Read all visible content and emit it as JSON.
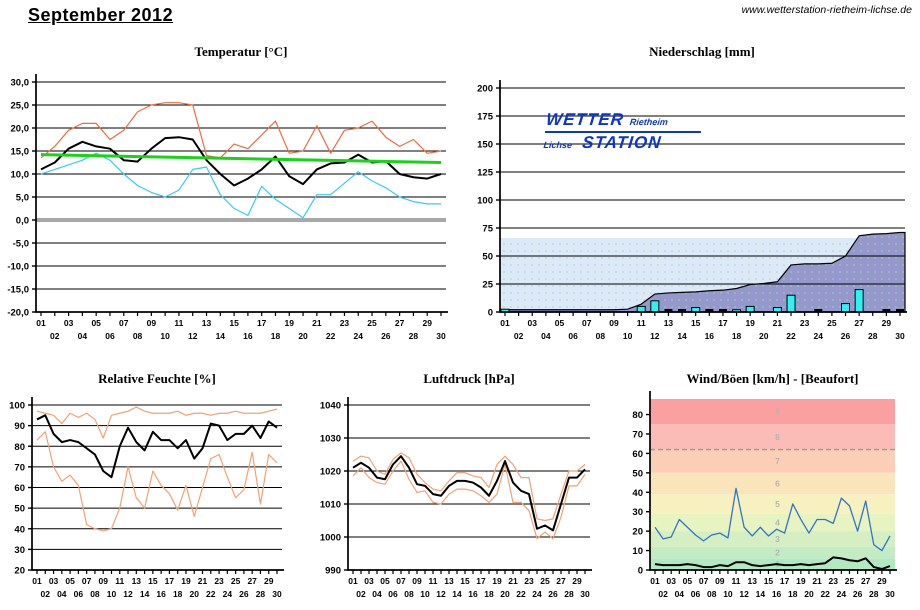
{
  "page": {
    "title": "September 2012",
    "website": "www.wetterstation-rietheim-lichse.de"
  },
  "logo": {
    "wetter": "WETTER",
    "rietheim": "Rietheim",
    "lichse": "Lichse",
    "station": "STATION",
    "color": "#0b35cc"
  },
  "days": [
    "01",
    "02",
    "03",
    "04",
    "05",
    "06",
    "07",
    "08",
    "09",
    "10",
    "11",
    "12",
    "13",
    "14",
    "15",
    "16",
    "17",
    "18",
    "19",
    "20",
    "21",
    "22",
    "23",
    "24",
    "25",
    "26",
    "27",
    "28",
    "29",
    "30"
  ],
  "chart_data": [
    {
      "type": "line",
      "title": "Temperatur [°C]",
      "xlabel": "",
      "ylabel": "",
      "x": "days 01-30",
      "ylim": [
        -20,
        30
      ],
      "y_ticks": {
        "values": [
          30,
          25,
          20,
          15,
          10,
          5,
          0,
          -5,
          -10,
          -15,
          -20
        ],
        "labels": [
          "30,0",
          "25,0",
          "20,0",
          "15,0",
          "10,0",
          "5,0",
          "0,0",
          "-5,0",
          "-10,0",
          "-15,0",
          "-20,0"
        ]
      },
      "zero_line": {
        "value": 0,
        "color": "#a8a8a8"
      },
      "series": [
        {
          "key": "max",
          "color": "#f4693c",
          "width": 1.2,
          "values": [
            13.5,
            16,
            19.5,
            21,
            21,
            17.5,
            19.5,
            23.5,
            25,
            25.5,
            25.5,
            25,
            14,
            13.5,
            16.5,
            15.5,
            18.5,
            21.5,
            14.5,
            15,
            20.5,
            14.5,
            19.5,
            20,
            21.5,
            18,
            16,
            17.5,
            14.5,
            15
          ]
        },
        {
          "key": "min",
          "color": "#33ccf5",
          "width": 1.2,
          "values": [
            10,
            11,
            12,
            13,
            14.5,
            13,
            10,
            7.5,
            6,
            5,
            6.5,
            11,
            11.5,
            5.5,
            2.5,
            1,
            7.3,
            4.5,
            2.5,
            0.5,
            5.5,
            5.5,
            8,
            10.5,
            8.5,
            7,
            5,
            4,
            3.5,
            3.5
          ]
        },
        {
          "key": "mean",
          "color": "#000000",
          "width": 2,
          "values": [
            11,
            12.5,
            15.5,
            17,
            16,
            15.5,
            13,
            12.7,
            15.5,
            17.8,
            18,
            17.5,
            13,
            10,
            7.5,
            9,
            11,
            13.8,
            9.5,
            7.8,
            11,
            12.3,
            12.5,
            14.2,
            12.5,
            12.8,
            10,
            9.3,
            9,
            10
          ]
        }
      ],
      "trend": {
        "start": 14.2,
        "end": 12.5,
        "color": "#15d615"
      }
    },
    {
      "type": "bar+area",
      "title": "Niederschlag [mm]",
      "xlabel": "",
      "ylabel": "",
      "x": "days 01-30",
      "ylim": [
        0,
        200
      ],
      "y_ticks": {
        "values": [
          200,
          175,
          150,
          125,
          100,
          75,
          50,
          25,
          0
        ],
        "labels": [
          "200",
          "175",
          "150",
          "125",
          "100",
          "75",
          "50",
          "25",
          "0"
        ]
      },
      "normal_area": {
        "value": 66,
        "color": "#dce9f8"
      },
      "cumulative": {
        "color": "#9697cd",
        "values": [
          2,
          2,
          2,
          2,
          2,
          2,
          2,
          2,
          2,
          2.5,
          7,
          16,
          17,
          17.5,
          18,
          19,
          19.5,
          21,
          24.5,
          25.5,
          27,
          42,
          43,
          43,
          43.5,
          50,
          68,
          69.5,
          70,
          71
        ]
      },
      "daily": {
        "color": "#2ef2f2",
        "values": [
          2.5,
          0,
          0,
          0,
          0,
          0,
          0,
          0,
          0,
          0,
          5,
          10,
          0,
          0,
          4,
          0,
          0,
          2,
          5,
          0,
          4,
          15,
          0,
          0,
          0,
          7.5,
          20,
          0,
          0,
          0
        ]
      },
      "trace_days": [
        13,
        14,
        16,
        17,
        24,
        29,
        30
      ]
    },
    {
      "type": "line",
      "title": "Relative Feuchte [%]",
      "xlabel": "",
      "ylabel": "",
      "x": "days 01-30",
      "ylim": [
        20,
        100
      ],
      "y_ticks": {
        "values": [
          100,
          90,
          80,
          70,
          60,
          50,
          40,
          30,
          20
        ],
        "labels": [
          "100",
          "90",
          "80",
          "70",
          "60",
          "50",
          "40",
          "30",
          "20"
        ]
      },
      "series": [
        {
          "key": "max",
          "color": "#f4a173",
          "width": 1.2,
          "values": [
            97,
            96,
            95,
            91,
            96,
            94,
            96,
            93,
            84,
            95,
            96,
            97,
            99,
            97,
            96,
            96,
            96,
            97,
            95,
            96,
            96,
            95,
            96,
            96,
            97,
            96,
            96,
            96,
            97,
            98
          ]
        },
        {
          "key": "min",
          "color": "#f4a173",
          "width": 1.2,
          "values": [
            83,
            87,
            70,
            63,
            66,
            61,
            42,
            40,
            39,
            40,
            50,
            70,
            55,
            50,
            68,
            61,
            57,
            49,
            61,
            46,
            60,
            74,
            76,
            65,
            55,
            59,
            77,
            52,
            76,
            72
          ]
        },
        {
          "key": "mean",
          "color": "#000000",
          "width": 2,
          "values": [
            93,
            95,
            86,
            82,
            83,
            82,
            79,
            76,
            68,
            65,
            80,
            89,
            82,
            78,
            87,
            83,
            83,
            79,
            83,
            74,
            79,
            91,
            90,
            83,
            86,
            86,
            90,
            84,
            92,
            89
          ]
        }
      ]
    },
    {
      "type": "line",
      "title": "Luftdruck [hPa]",
      "xlabel": "",
      "ylabel": "",
      "x": "days 01-30",
      "ylim": [
        990,
        1040
      ],
      "y_ticks": {
        "values": [
          1040,
          1030,
          1020,
          1010,
          1000,
          990
        ],
        "labels": [
          "1040",
          "1030",
          "1020",
          "1010",
          "1000",
          "990"
        ]
      },
      "series": [
        {
          "key": "max",
          "color": "#f4a173",
          "width": 1.2,
          "values": [
            1023,
            1024.5,
            1024,
            1020,
            1019,
            1023.5,
            1025.5,
            1024,
            1019,
            1016.5,
            1014.5,
            1014,
            1017,
            1019.5,
            1019.5,
            1018.5,
            1018,
            1015,
            1022,
            1024.5,
            1022,
            1018,
            1018,
            1005.5,
            1005,
            1005.5,
            1013,
            1020,
            1020,
            1022
          ]
        },
        {
          "key": "min",
          "color": "#f4a173",
          "width": 1.2,
          "values": [
            1018.5,
            1021,
            1018,
            1016.5,
            1016,
            1020,
            1023,
            1017.5,
            1013.5,
            1014,
            1010.5,
            1010,
            1013,
            1014.5,
            1014.5,
            1014,
            1012.5,
            1010.5,
            1013,
            1022,
            1010.5,
            1010.5,
            1008,
            999.5,
            1001.5,
            999.5,
            1006,
            1015.5,
            1015.5,
            1019
          ]
        },
        {
          "key": "mean",
          "color": "#000000",
          "width": 2,
          "values": [
            1021,
            1022.5,
            1021,
            1018,
            1017.5,
            1022,
            1024.5,
            1021,
            1016,
            1015.5,
            1013,
            1012.5,
            1015.5,
            1017,
            1017,
            1016.5,
            1015,
            1012.5,
            1017,
            1023,
            1016.5,
            1014,
            1013,
            1002.5,
            1003.5,
            1002,
            1010,
            1018,
            1018,
            1020.5
          ]
        }
      ]
    },
    {
      "type": "line",
      "title": "Wind/Böen [km/h] - [Beaufort]",
      "xlabel": "",
      "ylabel": "",
      "x": "days 01-30",
      "ylim": [
        0,
        88
      ],
      "grid": false,
      "y_ticks": {
        "values": [
          80,
          70,
          60,
          50,
          40,
          30,
          20,
          10,
          0
        ],
        "labels": [
          "80",
          "70",
          "60",
          "50",
          "40",
          "30",
          "20",
          "10",
          "0"
        ]
      },
      "beaufort": {
        "edges": [
          0,
          6,
          12,
          20,
          29,
          39,
          50,
          62,
          75,
          88
        ],
        "labels": [
          "1",
          "2",
          "3",
          "4",
          "5",
          "6",
          "7",
          "8",
          "9"
        ],
        "colors": [
          "#b2e9c3",
          "#c3ecc4",
          "#d5efc3",
          "#e8f3c2",
          "#f7f1bf",
          "#fae4bc",
          "#fbcfb6",
          "#fbbcb8",
          "#faa0a0"
        ],
        "label_color": "#b5b5b5"
      },
      "storm_line": {
        "value": 62,
        "color": "#999999"
      },
      "series": [
        {
          "key": "gusts",
          "color": "#2f74c8",
          "width": 1.3,
          "values": [
            22,
            16,
            17,
            26,
            22,
            18,
            15,
            18,
            19,
            16.5,
            42,
            22,
            17.5,
            22,
            17.5,
            21,
            19,
            34,
            26,
            19,
            26,
            26,
            24,
            37,
            33,
            20,
            35.5,
            13,
            10,
            17.5
          ]
        },
        {
          "key": "mean",
          "color": "#000000",
          "width": 2,
          "values": [
            3,
            2.5,
            2.5,
            2.5,
            3,
            2.5,
            1.5,
            1.5,
            2.5,
            2,
            4,
            4,
            2.5,
            2,
            2.5,
            3,
            2.5,
            2.5,
            3,
            2.5,
            3,
            3.5,
            6.5,
            6,
            5,
            4.5,
            6,
            1.5,
            0.5,
            2
          ]
        }
      ]
    }
  ]
}
